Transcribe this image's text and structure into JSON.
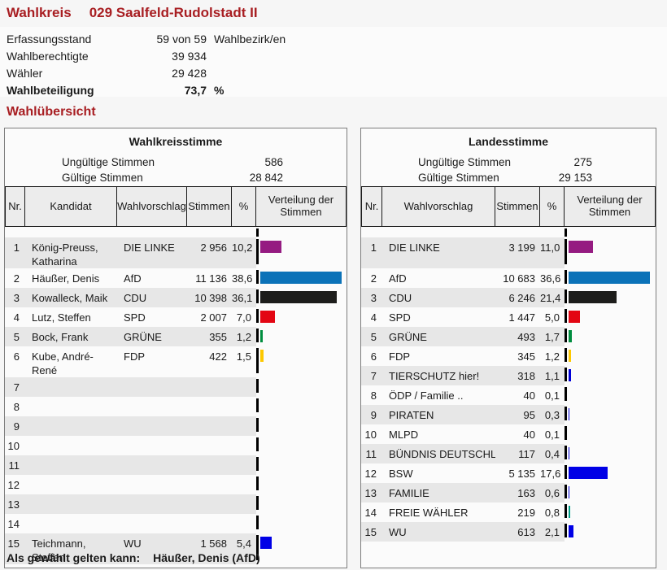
{
  "page": {
    "title_label": "Wahlkreis",
    "title_value": "029 Saalfeld-Rudolstadt II",
    "section_title": "Wahlübersicht",
    "elected_label": "Als gewählt gelten kann:",
    "elected_value": "Häußer, Denis (AfD)",
    "accent_color": "#a81e22"
  },
  "summary": {
    "rows": [
      {
        "label": "Erfassungsstand",
        "value": "59 von 59",
        "unit": "Wahlbezirk/en",
        "bold": false
      },
      {
        "label": "Wahlberechtigte",
        "value": "39 934",
        "unit": "",
        "bold": false
      },
      {
        "label": "Wähler",
        "value": "29 428",
        "unit": "",
        "bold": false
      },
      {
        "label": "Wahlbeteiligung",
        "value": "73,7",
        "unit": "%",
        "bold": true
      }
    ]
  },
  "tables": [
    {
      "title": "Wahlkreisstimme",
      "invalid_label": "Ungültige Stimmen",
      "invalid_value": "586",
      "valid_label": "Gültige Stimmen",
      "valid_value": "28 842",
      "columns": [
        "Nr.",
        "Kandidat",
        "Wahlvorschlag",
        "Stimmen",
        "%",
        "Verteilung der Stimmen"
      ],
      "has_candidate": true,
      "bar_scale": 2.6,
      "rows": [
        {
          "nr": "1",
          "kandidat": "König-Preuss, Katharina",
          "wahlvorschlag": "DIE LINKE",
          "stimmen": "2 956",
          "prozent": "10,2",
          "pct": 10.2,
          "color": "#951b81",
          "tall": true
        },
        {
          "nr": "2",
          "kandidat": "Häußer, Denis",
          "wahlvorschlag": "AfD",
          "stimmen": "11 136",
          "prozent": "38,6",
          "pct": 38.6,
          "color": "#0b72b8",
          "tall": false
        },
        {
          "nr": "3",
          "kandidat": "Kowalleck, Maik",
          "wahlvorschlag": "CDU",
          "stimmen": "10 398",
          "prozent": "36,1",
          "pct": 36.1,
          "color": "#1d1d1b",
          "tall": false
        },
        {
          "nr": "4",
          "kandidat": "Lutz, Steffen",
          "wahlvorschlag": "SPD",
          "stimmen": "2 007",
          "prozent": "7,0",
          "pct": 7.0,
          "color": "#e30613",
          "tall": false
        },
        {
          "nr": "5",
          "kandidat": "Bock, Frank",
          "wahlvorschlag": "GRÜNE",
          "stimmen": "355",
          "prozent": "1,2",
          "pct": 1.2,
          "color": "#008d3f",
          "tall": false
        },
        {
          "nr": "6",
          "kandidat": "Kube, André-René",
          "wahlvorschlag": "FDP",
          "stimmen": "422",
          "prozent": "1,5",
          "pct": 1.5,
          "color": "#fdc800",
          "tall": false
        },
        {
          "nr": "7",
          "kandidat": "",
          "wahlvorschlag": "",
          "stimmen": "",
          "prozent": "",
          "pct": null,
          "color": null,
          "tall": false
        },
        {
          "nr": "8",
          "kandidat": "",
          "wahlvorschlag": "",
          "stimmen": "",
          "prozent": "",
          "pct": null,
          "color": null,
          "tall": false
        },
        {
          "nr": "9",
          "kandidat": "",
          "wahlvorschlag": "",
          "stimmen": "",
          "prozent": "",
          "pct": null,
          "color": null,
          "tall": false
        },
        {
          "nr": "10",
          "kandidat": "",
          "wahlvorschlag": "",
          "stimmen": "",
          "prozent": "",
          "pct": null,
          "color": null,
          "tall": false
        },
        {
          "nr": "11",
          "kandidat": "",
          "wahlvorschlag": "",
          "stimmen": "",
          "prozent": "",
          "pct": null,
          "color": null,
          "tall": false
        },
        {
          "nr": "12",
          "kandidat": "",
          "wahlvorschlag": "",
          "stimmen": "",
          "prozent": "",
          "pct": null,
          "color": null,
          "tall": false
        },
        {
          "nr": "13",
          "kandidat": "",
          "wahlvorschlag": "",
          "stimmen": "",
          "prozent": "",
          "pct": null,
          "color": null,
          "tall": false
        },
        {
          "nr": "14",
          "kandidat": "",
          "wahlvorschlag": "",
          "stimmen": "",
          "prozent": "",
          "pct": null,
          "color": null,
          "tall": false
        },
        {
          "nr": "15",
          "kandidat": "Teichmann, Steffen",
          "wahlvorschlag": "WU",
          "stimmen": "1 568",
          "prozent": "5,4",
          "pct": 5.4,
          "color": "#0000e6",
          "tall": false
        }
      ]
    },
    {
      "title": "Landesstimme",
      "invalid_label": "Ungültige Stimmen",
      "invalid_value": "275",
      "valid_label": "Gültige Stimmen",
      "valid_value": "29 153",
      "columns": [
        "Nr.",
        "Wahlvorschlag",
        "Stimmen",
        "%",
        "Verteilung der Stimmen"
      ],
      "has_candidate": false,
      "bar_scale": 2.75,
      "rows": [
        {
          "nr": "1",
          "wahlvorschlag": "DIE LINKE",
          "stimmen": "3 199",
          "prozent": "11,0",
          "pct": 11.0,
          "color": "#951b81",
          "tall": true
        },
        {
          "nr": "2",
          "wahlvorschlag": "AfD",
          "stimmen": "10 683",
          "prozent": "36,6",
          "pct": 36.6,
          "color": "#0b72b8",
          "tall": false
        },
        {
          "nr": "3",
          "wahlvorschlag": "CDU",
          "stimmen": "6 246",
          "prozent": "21,4",
          "pct": 21.4,
          "color": "#1d1d1b",
          "tall": false
        },
        {
          "nr": "4",
          "wahlvorschlag": "SPD",
          "stimmen": "1 447",
          "prozent": "5,0",
          "pct": 5.0,
          "color": "#e30613",
          "tall": false
        },
        {
          "nr": "5",
          "wahlvorschlag": "GRÜNE",
          "stimmen": "493",
          "prozent": "1,7",
          "pct": 1.7,
          "color": "#008d3f",
          "tall": false
        },
        {
          "nr": "6",
          "wahlvorschlag": "FDP",
          "stimmen": "345",
          "prozent": "1,2",
          "pct": 1.2,
          "color": "#fdc800",
          "tall": false
        },
        {
          "nr": "7",
          "wahlvorschlag": "TIERSCHUTZ hier!",
          "stimmen": "318",
          "prozent": "1,1",
          "pct": 1.1,
          "color": "#0000d8",
          "tall": false
        },
        {
          "nr": "8",
          "wahlvorschlag": "ÖDP / Familie ..",
          "stimmen": "40",
          "prozent": "0,1",
          "pct": 0.1,
          "color": "#0000d8",
          "tall": false
        },
        {
          "nr": "9",
          "wahlvorschlag": "PIRATEN",
          "stimmen": "95",
          "prozent": "0,3",
          "pct": 0.3,
          "color": "#0000d8",
          "tall": false
        },
        {
          "nr": "10",
          "wahlvorschlag": "MLPD",
          "stimmen": "40",
          "prozent": "0,1",
          "pct": 0.1,
          "color": "#0000d8",
          "tall": false
        },
        {
          "nr": "11",
          "wahlvorschlag": "BÜNDNIS DEUTSCHLAND",
          "stimmen": "117",
          "prozent": "0,4",
          "pct": 0.4,
          "color": "#0000d8",
          "tall": false
        },
        {
          "nr": "12",
          "wahlvorschlag": "BSW",
          "stimmen": "5 135",
          "prozent": "17,6",
          "pct": 17.6,
          "color": "#0000e6",
          "tall": false
        },
        {
          "nr": "13",
          "wahlvorschlag": "FAMILIE",
          "stimmen": "163",
          "prozent": "0,6",
          "pct": 0.6,
          "color": "#0000d8",
          "tall": false
        },
        {
          "nr": "14",
          "wahlvorschlag": "FREIE WÄHLER",
          "stimmen": "219",
          "prozent": "0,8",
          "pct": 0.8,
          "color": "#00a08a",
          "tall": false
        },
        {
          "nr": "15",
          "wahlvorschlag": "WU",
          "stimmen": "613",
          "prozent": "2,1",
          "pct": 2.1,
          "color": "#0000e6",
          "tall": false
        }
      ]
    }
  ]
}
